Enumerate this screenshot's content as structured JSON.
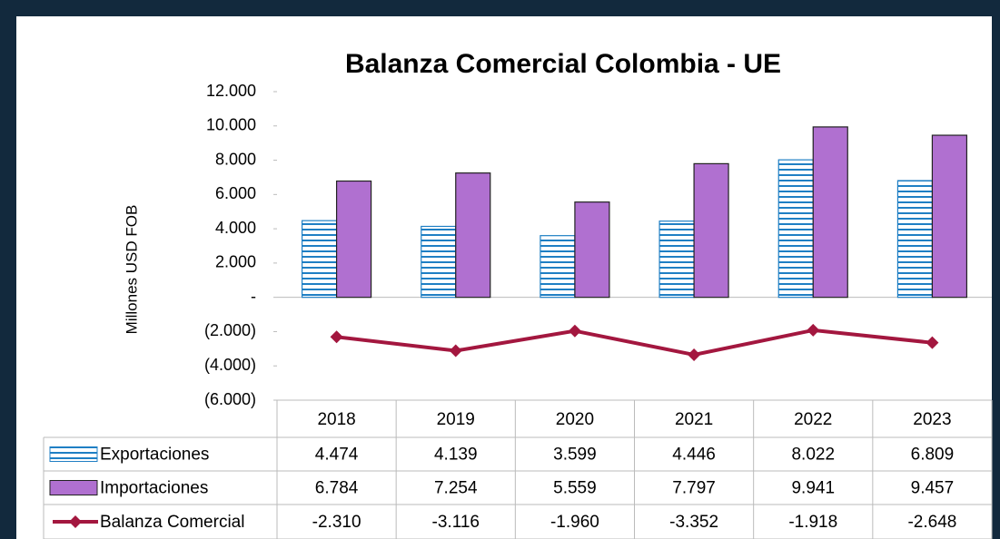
{
  "chart_data": {
    "type": "bar",
    "title": "Balanza Comercial Colombia - UE",
    "y_label": "Millones USD FOB",
    "categories": [
      "2018",
      "2019",
      "2020",
      "2021",
      "2022",
      "2023"
    ],
    "series": [
      {
        "name": "Exportaciones",
        "color": "#1f7fc4",
        "type": "bar",
        "values": [
          4474,
          4139,
          3599,
          4446,
          8022,
          6809
        ],
        "value_labels": [
          "4.474",
          "4.139",
          "3.599",
          "4.446",
          "8.022",
          "6.809"
        ]
      },
      {
        "name": "Importaciones",
        "color": "#b070d0",
        "type": "bar",
        "values": [
          6784,
          7254,
          5559,
          7797,
          9941,
          9457
        ],
        "value_labels": [
          "6.784",
          "7.254",
          "5.559",
          "7.797",
          "9.941",
          "9.457"
        ]
      },
      {
        "name": "Balanza Comercial",
        "color": "#a3173f",
        "type": "line",
        "values": [
          -2310,
          -3116,
          -1960,
          -3352,
          -1918,
          -2648
        ],
        "value_labels": [
          "-2.310",
          "-3.116",
          "-1.960",
          "-3.352",
          "-1.918",
          "-2.648"
        ]
      }
    ],
    "ylim": [
      -6000,
      12000
    ],
    "yticks": [
      {
        "value": 12000,
        "label": "12.000"
      },
      {
        "value": 10000,
        "label": "10.000"
      },
      {
        "value": 8000,
        "label": "8.000"
      },
      {
        "value": 6000,
        "label": "6.000"
      },
      {
        "value": 4000,
        "label": "4.000"
      },
      {
        "value": 2000,
        "label": "2.000"
      },
      {
        "value": 0,
        "label": "-"
      },
      {
        "value": -2000,
        "label": "(2.000)"
      },
      {
        "value": -4000,
        "label": "(4.000)"
      },
      {
        "value": -6000,
        "label": "(6.000)"
      }
    ]
  }
}
